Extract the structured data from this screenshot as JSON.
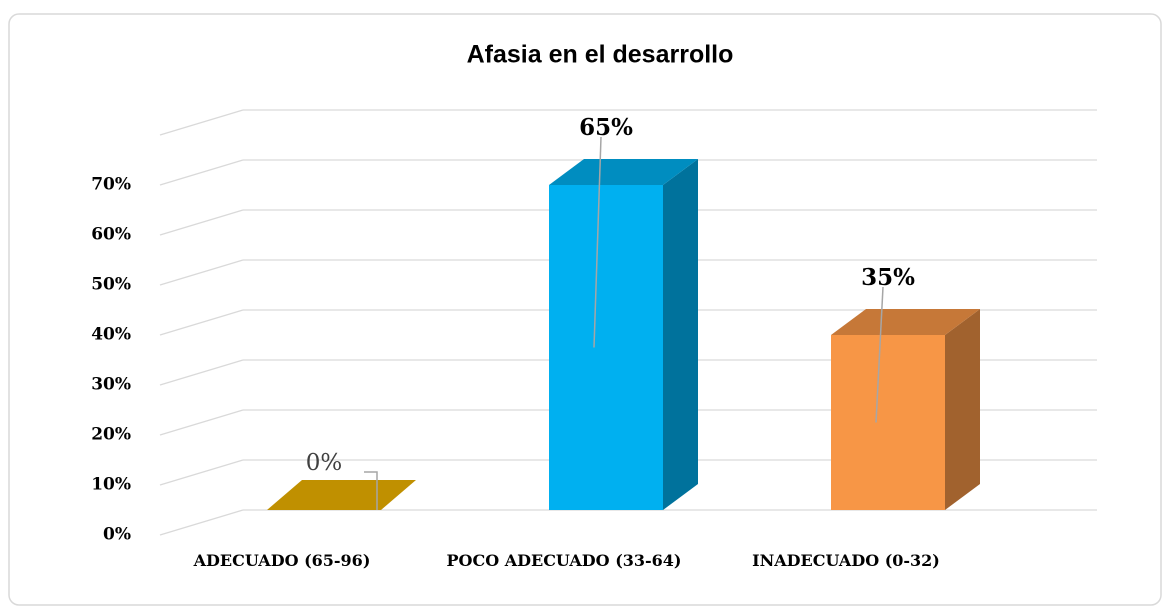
{
  "chart_data": {
    "type": "bar3d",
    "title": "Afasia en el desarrollo",
    "categories": [
      "ADECUADO (65-96)",
      "POCO ADECUADO (33-64)",
      "INADECUADO (0-32)"
    ],
    "values": [
      0,
      65,
      35
    ],
    "value_labels": [
      "0%",
      "65%",
      "35%"
    ],
    "colors": [
      "#c09000",
      "#00b0f0",
      "#f79646"
    ],
    "ylim": [
      0,
      80
    ],
    "yticks": [
      {
        "value": 0,
        "label": "0%"
      },
      {
        "value": 10,
        "label": "10%"
      },
      {
        "value": 20,
        "label": "20%"
      },
      {
        "value": 30,
        "label": "30%"
      },
      {
        "value": 40,
        "label": "40%"
      },
      {
        "value": 50,
        "label": "50%"
      },
      {
        "value": 60,
        "label": "60%"
      },
      {
        "value": 70,
        "label": "70%"
      }
    ],
    "grid": true
  }
}
